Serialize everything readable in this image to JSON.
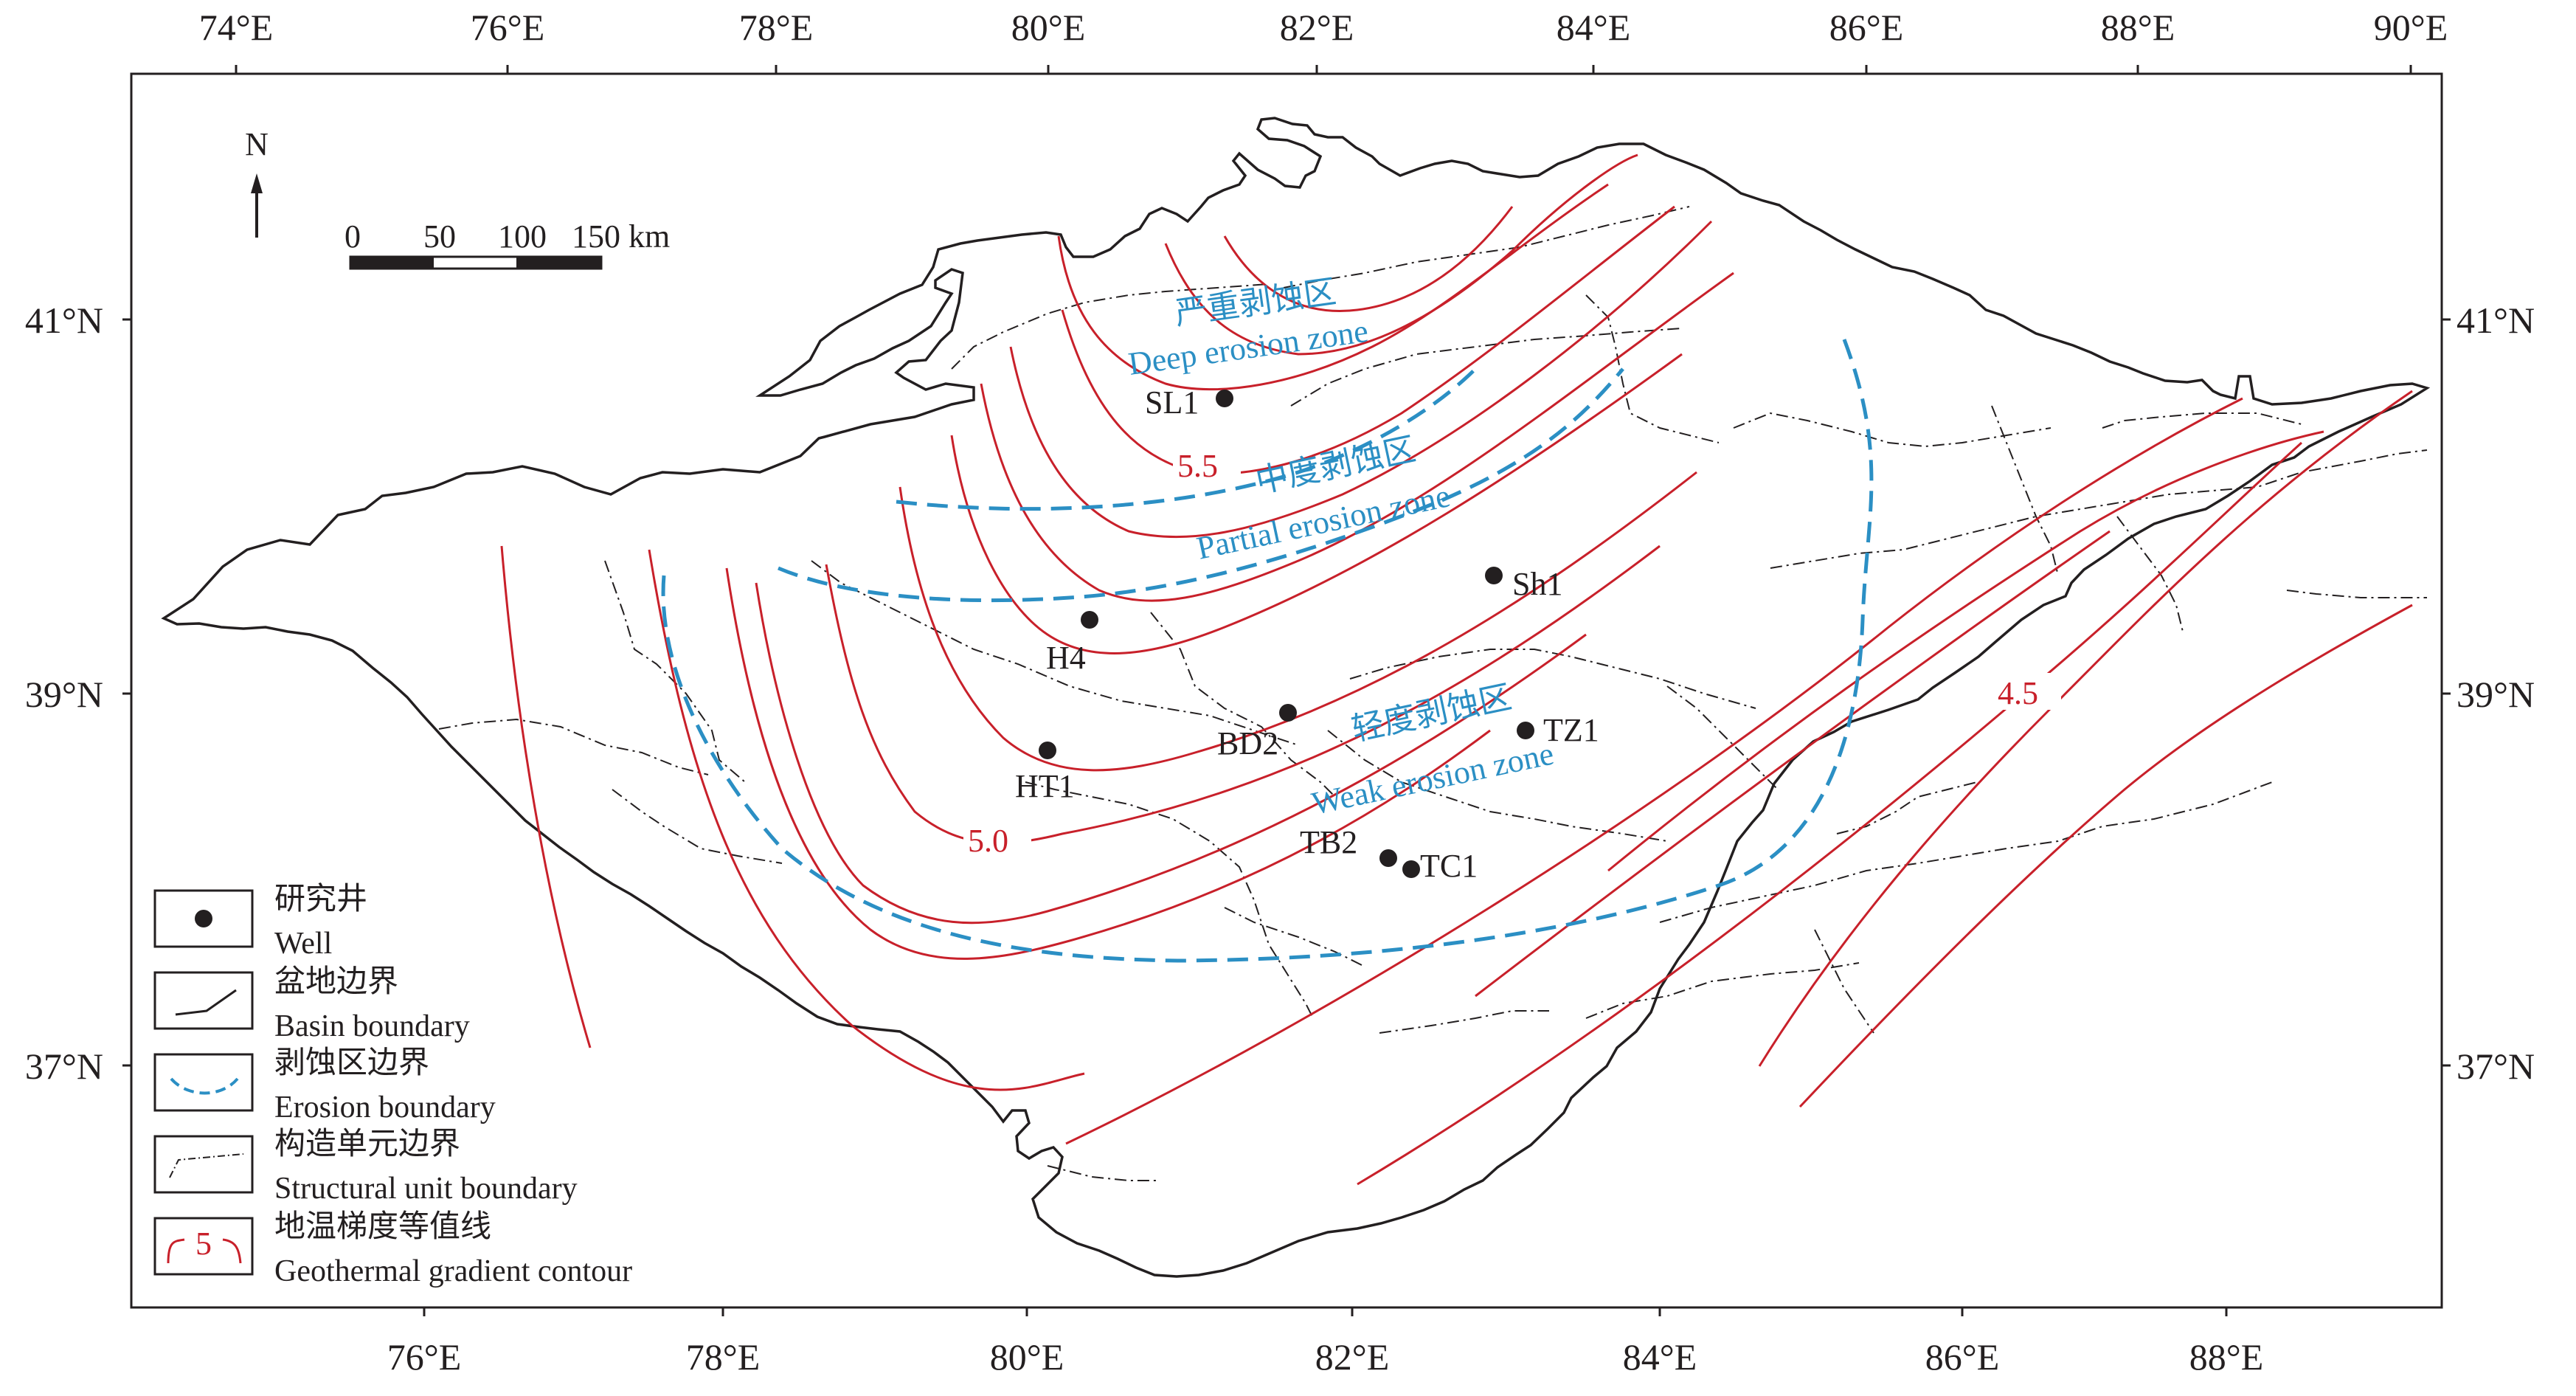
{
  "map": {
    "top_longitudes": [
      "74°E",
      "76°E",
      "78°E",
      "80°E",
      "82°E",
      "84°E",
      "86°E",
      "88°E",
      "90°E"
    ],
    "bottom_longitudes": [
      "76°E",
      "78°E",
      "80°E",
      "82°E",
      "84°E",
      "86°E",
      "88°E"
    ],
    "left_latitudes": [
      "41°N",
      "39°N",
      "37°N"
    ],
    "right_latitudes": [
      "41°N",
      "39°N",
      "37°N"
    ],
    "north_arrow": "N",
    "scale_bar": {
      "ticks": [
        "0",
        "50",
        "100",
        "150 km"
      ]
    },
    "zones": {
      "deep_cn": "严重剥蚀区",
      "deep_en": "Deep erosion zone",
      "partial_cn": "中度剥蚀区",
      "partial_en": "Partial erosion zone",
      "weak_cn": "轻度剥蚀区",
      "weak_en": "Weak erosion zone"
    },
    "contour_labels": [
      "5.5",
      "5.0",
      "4.5"
    ],
    "wells": [
      "SL1",
      "Sh1",
      "H4",
      "BD2",
      "TZ1",
      "HT1",
      "TB2",
      "TC1"
    ],
    "legend": [
      {
        "cn": "研究井",
        "en": "Well"
      },
      {
        "cn": "盆地边界",
        "en": "Basin boundary"
      },
      {
        "cn": "剥蚀区边界",
        "en": "Erosion boundary"
      },
      {
        "cn": "构造单元边界",
        "en": "Structural unit boundary"
      },
      {
        "cn": "地温梯度等值线",
        "en": "Geothermal gradient contour",
        "sample": "5"
      }
    ],
    "colors": {
      "contour": "#c8202a",
      "erosion_boundary": "#2b8fc4",
      "line": "#231f20"
    }
  }
}
